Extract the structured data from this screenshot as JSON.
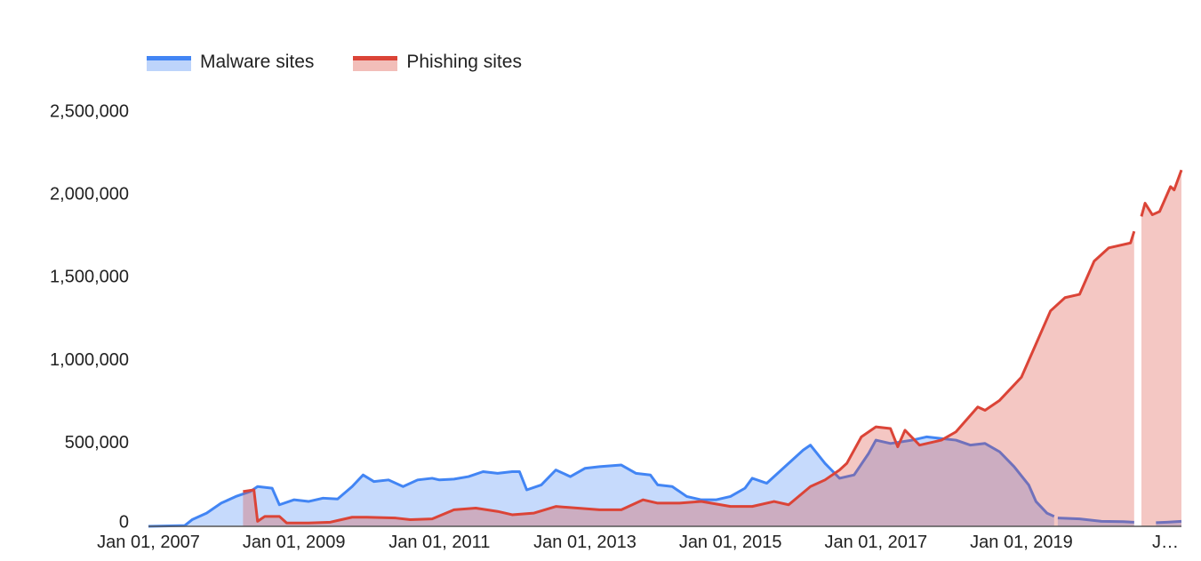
{
  "chart_data": {
    "type": "area",
    "title": "",
    "xlabel": "",
    "ylabel": "",
    "ylim": [
      0,
      2500000
    ],
    "y_ticks": [
      "0",
      "500,000",
      "1,000,000",
      "1,500,000",
      "2,000,000",
      "2,500,000"
    ],
    "y_tick_values": [
      0,
      500000,
      1000000,
      1500000,
      2000000,
      2500000
    ],
    "x_ticks": [
      "Jan 01, 2007",
      "Jan 01, 2009",
      "Jan 01, 2011",
      "Jan 01, 2013",
      "Jan 01, 2015",
      "Jan 01, 2017",
      "Jan 01, 2019",
      "J…"
    ],
    "x_tick_values": [
      2007.0,
      2009.0,
      2011.0,
      2013.0,
      2015.0,
      2017.0,
      2019.0,
      2021.0
    ],
    "xlim": [
      2007.0,
      2021.2
    ],
    "grid": false,
    "legend_position": "top-left",
    "series": [
      {
        "name": "Malware sites",
        "color": "#4285f4",
        "points": [
          [
            2007.0,
            0
          ],
          [
            2007.5,
            5000
          ],
          [
            2007.6,
            40000
          ],
          [
            2007.8,
            80000
          ],
          [
            2008.0,
            140000
          ],
          [
            2008.2,
            180000
          ],
          [
            2008.4,
            210000
          ],
          [
            2008.5,
            240000
          ],
          [
            2008.7,
            230000
          ],
          [
            2008.8,
            130000
          ],
          [
            2009.0,
            160000
          ],
          [
            2009.2,
            150000
          ],
          [
            2009.4,
            170000
          ],
          [
            2009.6,
            165000
          ],
          [
            2009.8,
            240000
          ],
          [
            2009.95,
            310000
          ],
          [
            2010.1,
            270000
          ],
          [
            2010.3,
            280000
          ],
          [
            2010.5,
            240000
          ],
          [
            2010.7,
            280000
          ],
          [
            2010.9,
            290000
          ],
          [
            2011.0,
            280000
          ],
          [
            2011.2,
            285000
          ],
          [
            2011.4,
            300000
          ],
          [
            2011.6,
            330000
          ],
          [
            2011.8,
            320000
          ],
          [
            2012.0,
            330000
          ],
          [
            2012.1,
            330000
          ],
          [
            2012.2,
            220000
          ],
          [
            2012.4,
            250000
          ],
          [
            2012.6,
            340000
          ],
          [
            2012.8,
            300000
          ],
          [
            2013.0,
            350000
          ],
          [
            2013.2,
            360000
          ],
          [
            2013.5,
            370000
          ],
          [
            2013.7,
            320000
          ],
          [
            2013.9,
            310000
          ],
          [
            2014.0,
            250000
          ],
          [
            2014.2,
            240000
          ],
          [
            2014.4,
            180000
          ],
          [
            2014.6,
            160000
          ],
          [
            2014.8,
            160000
          ],
          [
            2015.0,
            180000
          ],
          [
            2015.2,
            230000
          ],
          [
            2015.3,
            290000
          ],
          [
            2015.5,
            260000
          ],
          [
            2015.8,
            380000
          ],
          [
            2016.0,
            460000
          ],
          [
            2016.1,
            490000
          ],
          [
            2016.3,
            380000
          ],
          [
            2016.5,
            290000
          ],
          [
            2016.7,
            310000
          ],
          [
            2016.9,
            440000
          ],
          [
            2017.0,
            520000
          ],
          [
            2017.2,
            500000
          ],
          [
            2017.5,
            520000
          ],
          [
            2017.7,
            540000
          ],
          [
            2017.9,
            530000
          ],
          [
            2018.1,
            520000
          ],
          [
            2018.3,
            490000
          ],
          [
            2018.5,
            500000
          ],
          [
            2018.7,
            450000
          ],
          [
            2018.9,
            360000
          ],
          [
            2019.1,
            250000
          ],
          [
            2019.2,
            150000
          ],
          [
            2019.35,
            80000
          ],
          [
            2019.45,
            60000
          ],
          null,
          [
            2019.5,
            50000
          ],
          [
            2019.8,
            45000
          ],
          [
            2020.1,
            30000
          ],
          [
            2020.4,
            28000
          ],
          [
            2020.55,
            25000
          ],
          null,
          [
            2020.85,
            22000
          ],
          [
            2021.0,
            25000
          ],
          [
            2021.2,
            30000
          ]
        ]
      },
      {
        "name": "Phishing sites",
        "color": "#db4437",
        "points": [
          [
            2008.3,
            210000
          ],
          [
            2008.45,
            220000
          ],
          [
            2008.5,
            30000
          ],
          [
            2008.6,
            60000
          ],
          [
            2008.8,
            60000
          ],
          [
            2008.9,
            20000
          ],
          [
            2009.2,
            20000
          ],
          [
            2009.5,
            25000
          ],
          [
            2009.8,
            55000
          ],
          [
            2010.0,
            55000
          ],
          [
            2010.4,
            50000
          ],
          [
            2010.6,
            40000
          ],
          [
            2010.9,
            45000
          ],
          [
            2011.2,
            100000
          ],
          [
            2011.5,
            110000
          ],
          [
            2011.8,
            90000
          ],
          [
            2012.0,
            70000
          ],
          [
            2012.3,
            80000
          ],
          [
            2012.6,
            120000
          ],
          [
            2012.9,
            110000
          ],
          [
            2013.2,
            100000
          ],
          [
            2013.5,
            100000
          ],
          [
            2013.8,
            160000
          ],
          [
            2014.0,
            140000
          ],
          [
            2014.3,
            140000
          ],
          [
            2014.6,
            150000
          ],
          [
            2015.0,
            120000
          ],
          [
            2015.3,
            120000
          ],
          [
            2015.6,
            150000
          ],
          [
            2015.8,
            130000
          ],
          [
            2016.1,
            240000
          ],
          [
            2016.3,
            280000
          ],
          [
            2016.5,
            340000
          ],
          [
            2016.6,
            380000
          ],
          [
            2016.8,
            540000
          ],
          [
            2017.0,
            600000
          ],
          [
            2017.2,
            590000
          ],
          [
            2017.3,
            480000
          ],
          [
            2017.4,
            580000
          ],
          [
            2017.6,
            490000
          ],
          [
            2017.9,
            520000
          ],
          [
            2018.1,
            570000
          ],
          [
            2018.4,
            720000
          ],
          [
            2018.5,
            700000
          ],
          [
            2018.7,
            760000
          ],
          [
            2019.0,
            900000
          ],
          [
            2019.2,
            1100000
          ],
          [
            2019.4,
            1300000
          ],
          [
            2019.6,
            1380000
          ],
          [
            2019.8,
            1400000
          ],
          [
            2020.0,
            1600000
          ],
          [
            2020.2,
            1680000
          ],
          [
            2020.5,
            1710000
          ],
          [
            2020.55,
            1780000
          ],
          null,
          [
            2020.65,
            1870000
          ],
          [
            2020.7,
            1950000
          ],
          [
            2020.8,
            1880000
          ],
          [
            2020.9,
            1900000
          ],
          [
            2021.05,
            2050000
          ],
          [
            2021.1,
            2030000
          ],
          [
            2021.2,
            2150000
          ]
        ]
      }
    ]
  }
}
